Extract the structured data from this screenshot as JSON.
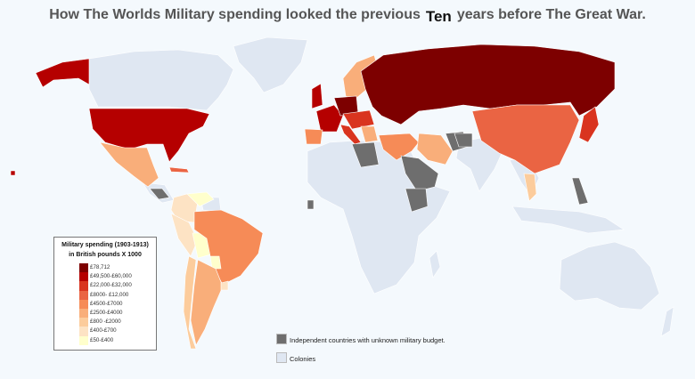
{
  "title": {
    "before": "How The Worlds Military spending looked the previous",
    "emphasis": "Ten",
    "after": "years before The Great War."
  },
  "legend": {
    "title_line1": "Military spending (1903-1913)",
    "title_line2": "in British pounds  X 1000",
    "tiers": [
      {
        "label": "£78,712",
        "color": "#7d0000"
      },
      {
        "label": "£49,500-£60,000",
        "color": "#b50000"
      },
      {
        "label": "£22,000-£32,000",
        "color": "#d9341f"
      },
      {
        "label": "£8000- £12,000",
        "color": "#ea6443"
      },
      {
        "label": "£4500-£7000",
        "color": "#f68b57"
      },
      {
        "label": "£2500-£4000",
        "color": "#f9ae7a"
      },
      {
        "label": "£800 -£2000",
        "color": "#fccc9c"
      },
      {
        "label": "£400-£700",
        "color": "#fde3c4"
      },
      {
        "label": "£50-£400",
        "color": "#ffffcc"
      }
    ]
  },
  "keys": {
    "unknown": {
      "label": "Independent countries with unknown military budget.",
      "color": "#6e6e6e"
    },
    "colonies": {
      "label": "Colonies",
      "color": "#dfe7f2"
    }
  }
}
